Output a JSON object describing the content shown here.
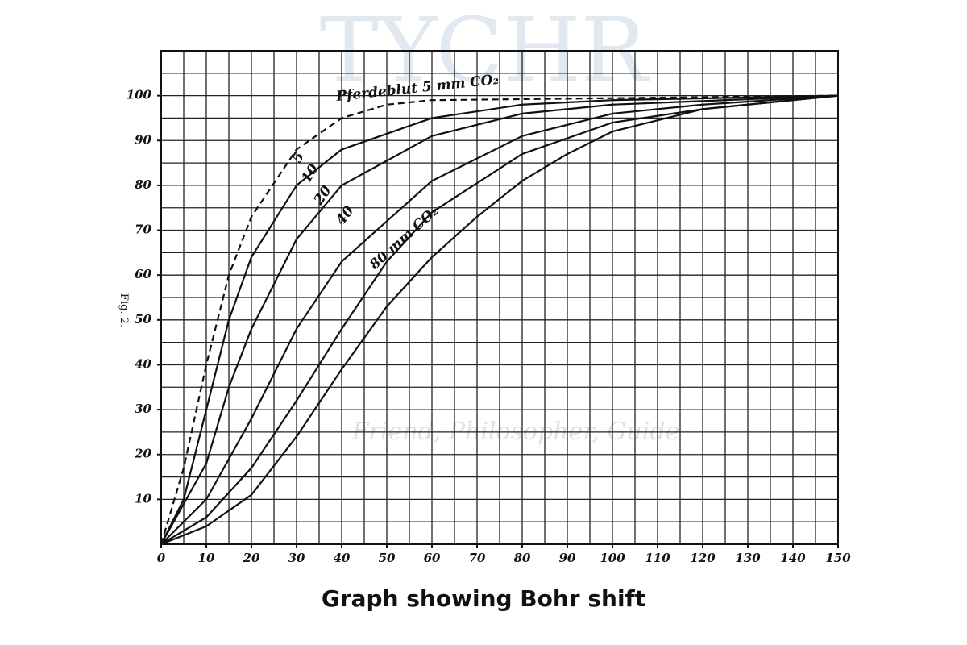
{
  "chart_data": {
    "type": "line",
    "annotation": "Fig. 2.",
    "caption": "Graph showing Bohr shift",
    "xlim": [
      0,
      150
    ],
    "xticks": [
      0,
      10,
      20,
      30,
      40,
      50,
      60,
      70,
      80,
      90,
      100,
      110,
      120,
      130,
      140,
      150
    ],
    "ylim": [
      0,
      110
    ],
    "yticks": [
      10,
      20,
      30,
      40,
      50,
      60,
      70,
      80,
      90,
      100
    ],
    "grid": true,
    "grid_step": 5,
    "series": [
      {
        "name": "Pferdeblut 5 mm CO₂",
        "color": "#111111",
        "dashed": true,
        "x": [
          0,
          5,
          10,
          15,
          20,
          30,
          40,
          50,
          60,
          150
        ],
        "values": [
          0,
          17,
          40,
          60,
          73,
          88,
          95,
          98,
          99,
          100
        ]
      },
      {
        "name": "5",
        "color": "#111111",
        "dashed": false,
        "x": [
          0,
          5,
          10,
          15,
          20,
          30,
          40,
          60,
          80,
          100,
          150
        ],
        "values": [
          0,
          10,
          30,
          50,
          64,
          80,
          88,
          95,
          98,
          99,
          100
        ]
      },
      {
        "name": "10",
        "color": "#111111",
        "dashed": false,
        "x": [
          0,
          10,
          15,
          20,
          30,
          40,
          60,
          80,
          100,
          150
        ],
        "values": [
          0,
          18,
          35,
          48,
          68,
          80,
          91,
          96,
          98,
          100
        ]
      },
      {
        "name": "20",
        "color": "#111111",
        "dashed": false,
        "x": [
          0,
          10,
          20,
          30,
          40,
          60,
          80,
          100,
          120,
          150
        ],
        "values": [
          0,
          10,
          28,
          48,
          63,
          81,
          91,
          96,
          98,
          100
        ]
      },
      {
        "name": "40",
        "color": "#111111",
        "dashed": false,
        "x": [
          0,
          10,
          20,
          30,
          40,
          50,
          60,
          80,
          100,
          120,
          150
        ],
        "values": [
          0,
          6,
          17,
          32,
          48,
          63,
          74,
          87,
          94,
          97,
          100
        ]
      },
      {
        "name": "80 mm CO₂",
        "color": "#111111",
        "dashed": false,
        "x": [
          0,
          10,
          20,
          30,
          40,
          50,
          60,
          70,
          80,
          90,
          100,
          120,
          150
        ],
        "values": [
          0,
          4,
          11,
          24,
          39,
          53,
          64,
          73,
          81,
          87,
          92,
          97,
          100
        ]
      }
    ]
  },
  "watermark": {
    "title": "TYCHR",
    "subtitle": "Friend, Philosopher, Guide"
  }
}
